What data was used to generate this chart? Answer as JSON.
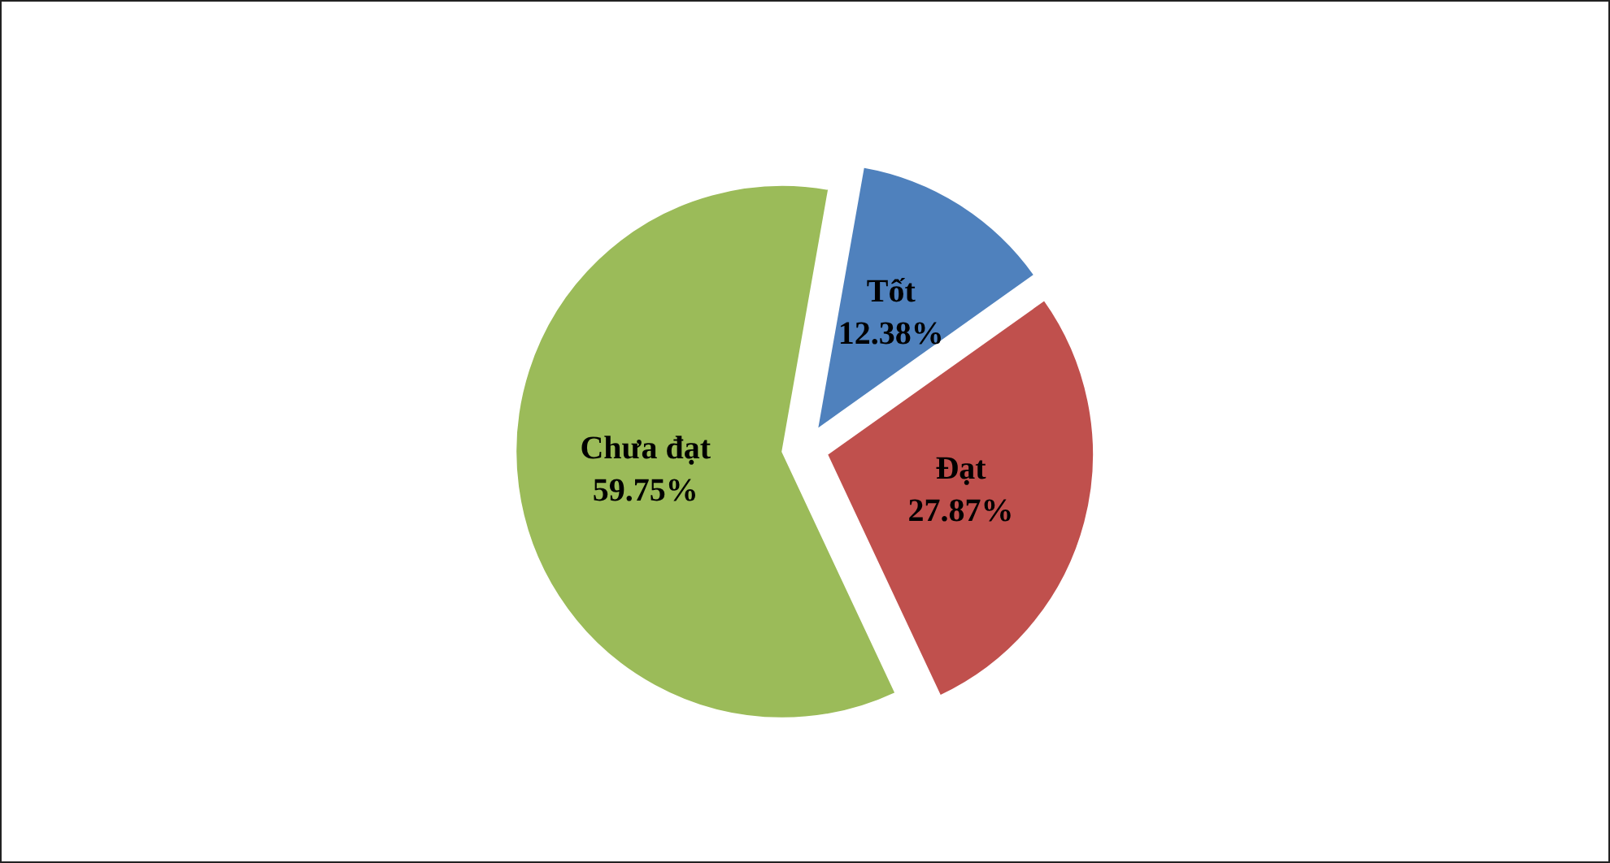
{
  "chart_data": {
    "type": "pie",
    "categories": [
      "Tốt",
      "Đạt",
      "Chưa đạt"
    ],
    "values": [
      12.38,
      27.87,
      59.75
    ],
    "colors": [
      "#4f81bd",
      "#c0504d",
      "#9bbb59"
    ],
    "value_labels": [
      "12.38%",
      "27.87%",
      "59.75%"
    ],
    "legend": false
  }
}
